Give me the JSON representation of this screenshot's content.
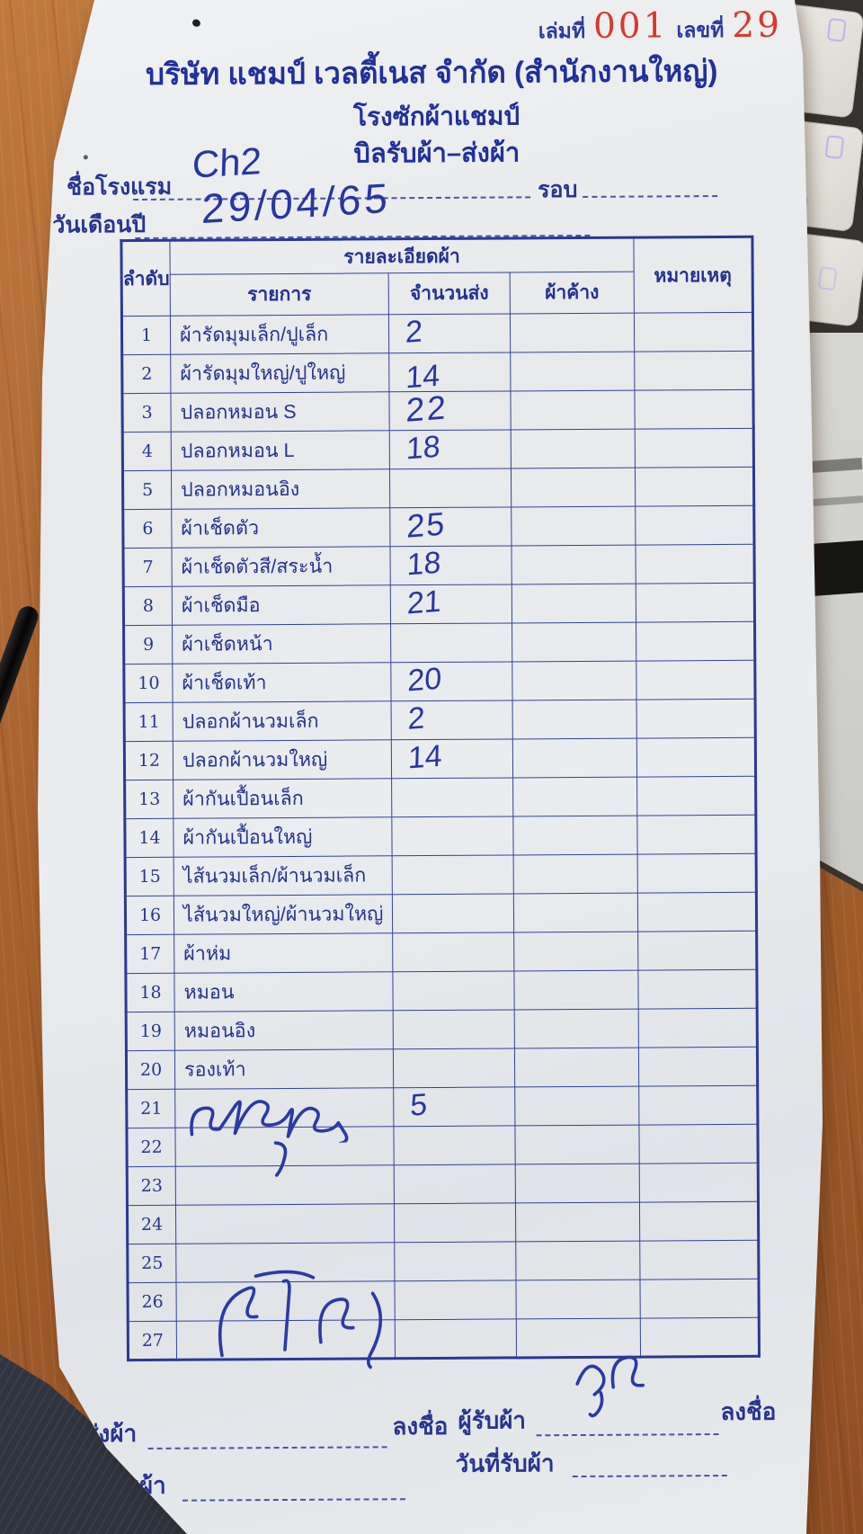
{
  "page": {
    "book_label": "เล่มที่",
    "book_no": "001",
    "number_label": "เลขที่",
    "number_no": "29",
    "company": "บริษัท แชมป์ เวลตี้เนส จำกัด (สำนักงานใหญ่)",
    "subtitle1": "โรงซักผ้าแชมป์",
    "subtitle2": "บิลรับผ้า–ส่งผ้า"
  },
  "form": {
    "hotel_label": "ชื่อโรงแรม",
    "hotel_value": "Ch2",
    "round_label": "รอบ",
    "round_value": "",
    "date_label": "วันเดือนปี",
    "date_value": "29/04/65"
  },
  "table": {
    "col_no": "ลำดับ",
    "col_details": "รายละเอียดผ้า",
    "col_item": "รายการ",
    "col_sent": "จำนวนส่ง",
    "col_pending": "ผ้าค้าง",
    "col_remark": "หมายเหตุ",
    "rows": [
      {
        "no": "1",
        "item": "ผ้ารัดมุมเล็ก/ปูเล็ก",
        "sent": "2",
        "pending": "",
        "remark": ""
      },
      {
        "no": "2",
        "item": "ผ้ารัดมุมใหญ่/ปูใหญ่",
        "sent": "14",
        "pending": "",
        "remark": ""
      },
      {
        "no": "3",
        "item": "ปลอกหมอน S",
        "sent": "22",
        "pending": "",
        "remark": ""
      },
      {
        "no": "4",
        "item": "ปลอกหมอน L",
        "sent": "18",
        "pending": "",
        "remark": ""
      },
      {
        "no": "5",
        "item": "ปลอกหมอนอิง",
        "sent": "",
        "pending": "",
        "remark": ""
      },
      {
        "no": "6",
        "item": "ผ้าเช็ดตัว",
        "sent": "25",
        "pending": "",
        "remark": ""
      },
      {
        "no": "7",
        "item": "ผ้าเช็ดตัวสี/สระน้ำ",
        "sent": "18",
        "pending": "",
        "remark": ""
      },
      {
        "no": "8",
        "item": "ผ้าเช็ดมือ",
        "sent": "21",
        "pending": "",
        "remark": ""
      },
      {
        "no": "9",
        "item": "ผ้าเช็ดหน้า",
        "sent": "",
        "pending": "",
        "remark": ""
      },
      {
        "no": "10",
        "item": "ผ้าเช็ดเท้า",
        "sent": "20",
        "pending": "",
        "remark": ""
      },
      {
        "no": "11",
        "item": "ปลอกผ้านวมเล็ก",
        "sent": "2",
        "pending": "",
        "remark": ""
      },
      {
        "no": "12",
        "item": "ปลอกผ้านวมใหญ่",
        "sent": "14",
        "pending": "",
        "remark": ""
      },
      {
        "no": "13",
        "item": "ผ้ากันเปื้อนเล็ก",
        "sent": "",
        "pending": "",
        "remark": ""
      },
      {
        "no": "14",
        "item": "ผ้ากันเปื้อนใหญ่",
        "sent": "",
        "pending": "",
        "remark": ""
      },
      {
        "no": "15",
        "item": "ไส้นวมเล็ก/ผ้านวมเล็ก",
        "sent": "",
        "pending": "",
        "remark": ""
      },
      {
        "no": "16",
        "item": "ไส้นวมใหญ่/ผ้านวมใหญ่",
        "sent": "",
        "pending": "",
        "remark": ""
      },
      {
        "no": "17",
        "item": "ผ้าห่ม",
        "sent": "",
        "pending": "",
        "remark": ""
      },
      {
        "no": "18",
        "item": "หมอน",
        "sent": "",
        "pending": "",
        "remark": ""
      },
      {
        "no": "19",
        "item": "หมอนอิง",
        "sent": "",
        "pending": "",
        "remark": ""
      },
      {
        "no": "20",
        "item": "รองเท้า",
        "sent": "",
        "pending": "",
        "remark": ""
      },
      {
        "no": "21",
        "item": "",
        "sent": "5",
        "pending": "",
        "remark": ""
      },
      {
        "no": "22",
        "item": "",
        "sent": "",
        "pending": "",
        "remark": ""
      },
      {
        "no": "23",
        "item": "",
        "sent": "",
        "pending": "",
        "remark": ""
      },
      {
        "no": "24",
        "item": "",
        "sent": "",
        "pending": "",
        "remark": ""
      },
      {
        "no": "25",
        "item": "",
        "sent": "",
        "pending": "",
        "remark": ""
      },
      {
        "no": "26",
        "item": "",
        "sent": "",
        "pending": "",
        "remark": ""
      },
      {
        "no": "27",
        "item": "",
        "sent": "",
        "pending": "",
        "remark": ""
      }
    ]
  },
  "handwritten": {
    "row21_item": "เสื้อคลุม",
    "row22_mark": "ๆ",
    "sender_signature": "ชโลธร",
    "receiver_signature": "รช"
  },
  "footer": {
    "sender_label": "ผู้ส่งผ้า",
    "sign_label": "ลงชื่อ",
    "receiver_label": "ผู้รับผ้า",
    "sign_label2": "ลงชื่อ",
    "date_received_label_left": "วันที่รับผ้า",
    "date_received_label_right": "วันที่รับผ้า"
  },
  "colors": {
    "ink_blue": "#2836a0",
    "print_blue": "#21309a",
    "stamp_red": "#d53a2c",
    "paper": "#e8ebed",
    "wood": "#a55f2c"
  }
}
